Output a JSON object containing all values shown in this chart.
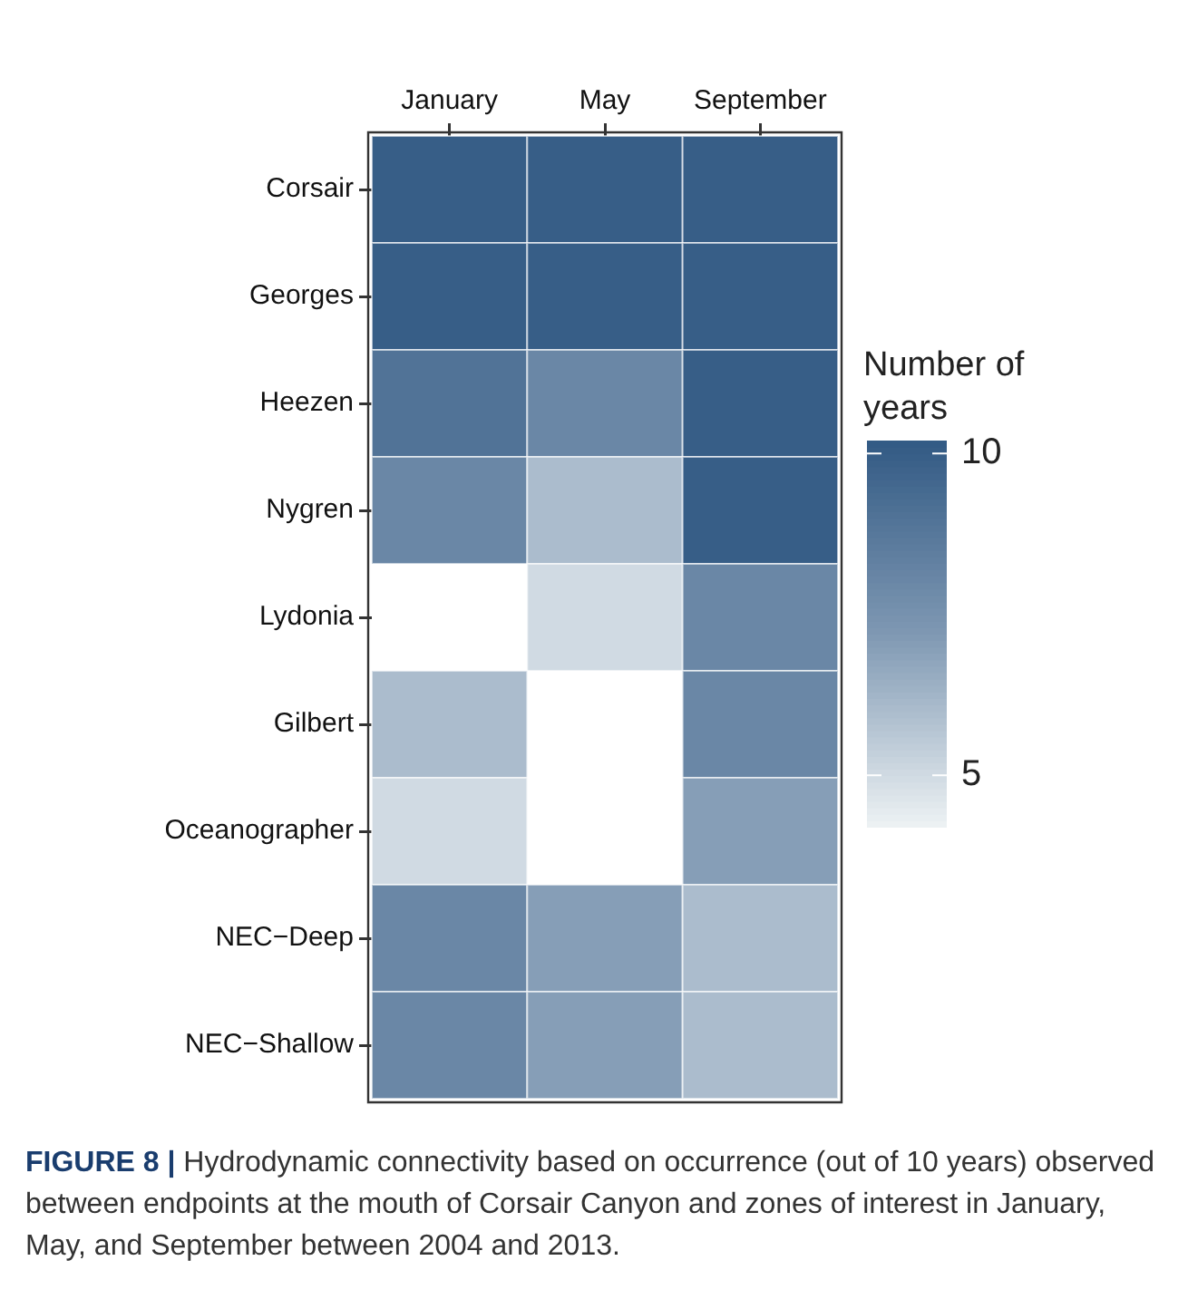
{
  "chart_data": {
    "type": "heatmap",
    "categories": [
      "January",
      "May",
      "September"
    ],
    "y_categories": [
      "Corsair",
      "Georges",
      "Heezen",
      "Nygren",
      "Lydonia",
      "Gilbert",
      "Oceanographer",
      "NEC−Deep",
      "NEC−Shallow"
    ],
    "cells": [
      [
        10,
        10,
        10
      ],
      [
        10,
        10,
        10
      ],
      [
        9,
        8,
        10
      ],
      [
        8,
        6,
        10
      ],
      [
        null,
        5,
        8
      ],
      [
        6,
        null,
        8
      ],
      [
        5,
        null,
        7
      ],
      [
        8,
        7,
        6
      ],
      [
        8,
        7,
        6
      ]
    ],
    "clabel": "Number of years",
    "clim": [
      4.2,
      10.2
    ],
    "cticks": [
      5,
      10
    ],
    "annotations": [
      "FIGURE 8 | Hydrodynamic connectivity based on occurrence (out of 10 years) observed between endpoints at the mouth of Corsair Canyon and zones of interest in January, May, and September between 2004 and 2013."
    ]
  }
}
